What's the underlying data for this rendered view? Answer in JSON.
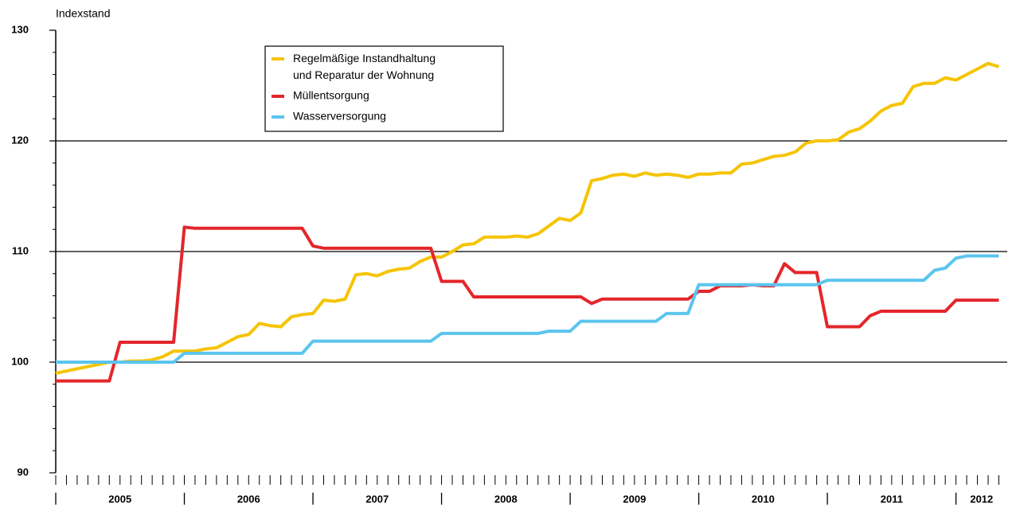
{
  "chart_data": {
    "type": "line",
    "y_axis_label": "Indexstand",
    "categories": [
      null,
      null,
      null,
      null,
      null,
      null,
      null,
      null,
      null,
      null,
      null,
      null,
      null,
      null,
      null,
      null,
      null,
      null,
      null,
      null,
      null,
      null,
      null,
      null,
      null,
      null,
      null,
      null,
      null,
      null,
      null,
      null,
      null,
      null,
      null,
      null,
      null,
      null,
      null,
      null,
      null,
      null,
      null,
      null,
      null,
      null,
      null,
      null,
      null,
      null,
      null,
      null,
      null,
      null,
      null,
      null,
      null,
      null,
      null,
      null,
      null,
      null,
      null,
      null,
      null,
      null,
      null,
      null,
      null,
      null,
      null,
      null,
      null,
      null,
      null,
      null,
      null,
      null,
      null,
      null,
      null,
      null,
      null,
      null,
      null,
      null,
      null,
      null,
      null
    ],
    "year_labels": [
      "2005",
      "2006",
      "2007",
      "2008",
      "2009",
      "2010",
      "2011",
      "2012"
    ],
    "series": [
      {
        "name": "Regelmäßige Instandhaltung\nund Reparatur der Wohnung",
        "color": "#f5c400",
        "values": [
          99.0,
          99.2,
          99.4,
          99.6,
          99.8,
          100.0,
          100.0,
          100.1,
          100.1,
          100.2,
          100.5,
          101.0,
          101.0,
          101.0,
          101.2,
          101.3,
          101.8,
          102.3,
          102.5,
          103.5,
          103.3,
          103.2,
          104.1,
          104.3,
          104.4,
          105.6,
          105.5,
          105.7,
          107.9,
          108.0,
          107.8,
          108.2,
          108.4,
          108.5,
          109.1,
          109.5,
          109.5,
          110.0,
          110.6,
          110.7,
          111.3,
          111.3,
          111.3,
          111.4,
          111.3,
          111.6,
          112.3,
          113.0,
          112.8,
          113.5,
          116.4,
          116.6,
          116.9,
          117.0,
          116.8,
          117.1,
          116.9,
          117.0,
          116.9,
          116.7,
          117.0,
          117.0,
          117.1,
          117.1,
          117.9,
          118.0,
          118.3,
          118.6,
          118.7,
          119.0,
          119.8,
          120.0,
          120.0,
          120.1,
          120.8,
          121.1,
          121.8,
          122.7,
          123.2,
          123.4,
          124.9,
          125.2,
          125.2,
          125.7,
          125.5,
          126.0,
          126.5,
          127.0,
          126.7
        ]
      },
      {
        "name": "Müllentsorgung",
        "color": "#e3262b",
        "values": [
          98.3,
          98.3,
          98.3,
          98.3,
          98.3,
          98.3,
          101.8,
          101.8,
          101.8,
          101.8,
          101.8,
          101.8,
          112.2,
          112.1,
          112.1,
          112.1,
          112.1,
          112.1,
          112.1,
          112.1,
          112.1,
          112.1,
          112.1,
          112.1,
          110.5,
          110.3,
          110.3,
          110.3,
          110.3,
          110.3,
          110.3,
          110.3,
          110.3,
          110.3,
          110.3,
          110.3,
          107.3,
          107.3,
          107.3,
          105.9,
          105.9,
          105.9,
          105.9,
          105.9,
          105.9,
          105.9,
          105.9,
          105.9,
          105.9,
          105.9,
          105.3,
          105.7,
          105.7,
          105.7,
          105.7,
          105.7,
          105.7,
          105.7,
          105.7,
          105.7,
          106.4,
          106.4,
          106.9,
          106.9,
          106.9,
          107.0,
          106.9,
          106.9,
          108.9,
          108.1,
          108.1,
          108.1,
          103.2,
          103.2,
          103.2,
          103.2,
          104.2,
          104.6,
          104.6,
          104.6,
          104.6,
          104.6,
          104.6,
          104.6,
          105.6,
          105.6,
          105.6,
          105.6,
          105.6
        ]
      },
      {
        "name": "Wasserversorgung",
        "color": "#5bc5ee",
        "values": [
          100.0,
          100.0,
          100.0,
          100.0,
          100.0,
          100.0,
          100.0,
          100.0,
          100.0,
          100.0,
          100.0,
          100.0,
          100.8,
          100.8,
          100.8,
          100.8,
          100.8,
          100.8,
          100.8,
          100.8,
          100.8,
          100.8,
          100.8,
          100.8,
          101.9,
          101.9,
          101.9,
          101.9,
          101.9,
          101.9,
          101.9,
          101.9,
          101.9,
          101.9,
          101.9,
          101.9,
          102.6,
          102.6,
          102.6,
          102.6,
          102.6,
          102.6,
          102.6,
          102.6,
          102.6,
          102.6,
          102.8,
          102.8,
          102.8,
          103.7,
          103.7,
          103.7,
          103.7,
          103.7,
          103.7,
          103.7,
          103.7,
          104.4,
          104.4,
          104.4,
          107.0,
          107.0,
          107.0,
          107.0,
          107.0,
          107.0,
          107.0,
          107.0,
          107.0,
          107.0,
          107.0,
          107.0,
          107.4,
          107.4,
          107.4,
          107.4,
          107.4,
          107.4,
          107.4,
          107.4,
          107.4,
          107.4,
          108.3,
          108.5,
          109.4,
          109.6,
          109.6,
          109.6,
          109.6
        ]
      }
    ],
    "ylim": [
      90,
      130
    ],
    "yticks": [
      90,
      100,
      110,
      120,
      130
    ],
    "grid": true
  }
}
